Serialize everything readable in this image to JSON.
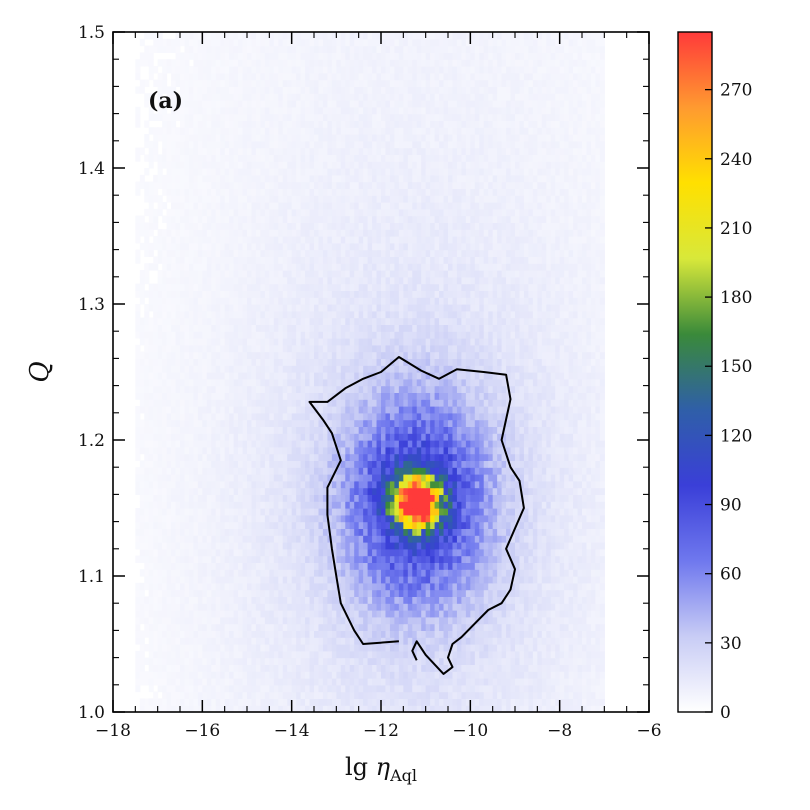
{
  "chart_data": {
    "type": "heatmap",
    "panel_label": "(a)",
    "xlabel": {
      "main": "lg ",
      "symbol": "η",
      "subscript": "Aql"
    },
    "ylabel": "Q",
    "xlim": [
      -18,
      -6
    ],
    "ylim": [
      1.0,
      1.5
    ],
    "x_ticks": [
      -18,
      -16,
      -14,
      -12,
      -10,
      -8,
      -6
    ],
    "x_tick_labels": [
      "−18",
      "−16",
      "−14",
      "−12",
      "−10",
      "−8",
      "−6"
    ],
    "y_ticks": [
      1.0,
      1.1,
      1.2,
      1.3,
      1.4,
      1.5
    ],
    "y_tick_labels": [
      "1.0",
      "1.1",
      "1.2",
      "1.3",
      "1.4",
      "1.5"
    ],
    "colorbar": {
      "range": [
        0,
        295
      ],
      "ticks": [
        0,
        30,
        60,
        90,
        120,
        150,
        180,
        210,
        240,
        270
      ],
      "tick_labels": [
        "0",
        "30",
        "60",
        "90",
        "120",
        "150",
        "180",
        "210",
        "240",
        "270"
      ],
      "colors": [
        "#ffffff",
        "#c8ccf5",
        "#6f78ee",
        "#3a3fd8",
        "#2f5fa8",
        "#3a8a3a",
        "#d8e83a",
        "#ffe000",
        "#ff9a30",
        "#ff3a3a"
      ]
    },
    "density_peak": {
      "x": -11.2,
      "y": 1.155,
      "count": 295
    },
    "density_extent": {
      "x": [
        -17.5,
        -7.0
      ],
      "y": [
        1.0,
        1.5
      ]
    },
    "contour": [
      [
        -11.6,
        1.052
      ],
      [
        -12.4,
        1.05
      ],
      [
        -12.6,
        1.06
      ],
      [
        -12.9,
        1.08
      ],
      [
        -13.0,
        1.1
      ],
      [
        -13.1,
        1.12
      ],
      [
        -13.2,
        1.145
      ],
      [
        -13.2,
        1.165
      ],
      [
        -12.9,
        1.185
      ],
      [
        -13.1,
        1.205
      ],
      [
        -13.3,
        1.215
      ],
      [
        -13.6,
        1.228
      ],
      [
        -13.2,
        1.228
      ],
      [
        -12.8,
        1.238
      ],
      [
        -12.4,
        1.245
      ],
      [
        -12.0,
        1.25
      ],
      [
        -11.6,
        1.261
      ],
      [
        -11.1,
        1.251
      ],
      [
        -10.7,
        1.245
      ],
      [
        -10.3,
        1.252
      ],
      [
        -9.7,
        1.25
      ],
      [
        -9.2,
        1.248
      ],
      [
        -9.1,
        1.23
      ],
      [
        -9.3,
        1.2
      ],
      [
        -9.1,
        1.18
      ],
      [
        -8.9,
        1.17
      ],
      [
        -8.8,
        1.15
      ],
      [
        -9.0,
        1.135
      ],
      [
        -9.2,
        1.12
      ],
      [
        -9.0,
        1.105
      ],
      [
        -9.1,
        1.09
      ],
      [
        -9.3,
        1.08
      ],
      [
        -9.6,
        1.075
      ],
      [
        -9.9,
        1.065
      ],
      [
        -10.2,
        1.055
      ],
      [
        -10.4,
        1.05
      ],
      [
        -10.5,
        1.04
      ],
      [
        -10.4,
        1.033
      ],
      [
        -10.6,
        1.028
      ],
      [
        -10.8,
        1.035
      ],
      [
        -11.0,
        1.042
      ],
      [
        -11.2,
        1.052
      ],
      [
        -11.3,
        1.045
      ],
      [
        -11.2,
        1.038
      ]
    ]
  }
}
